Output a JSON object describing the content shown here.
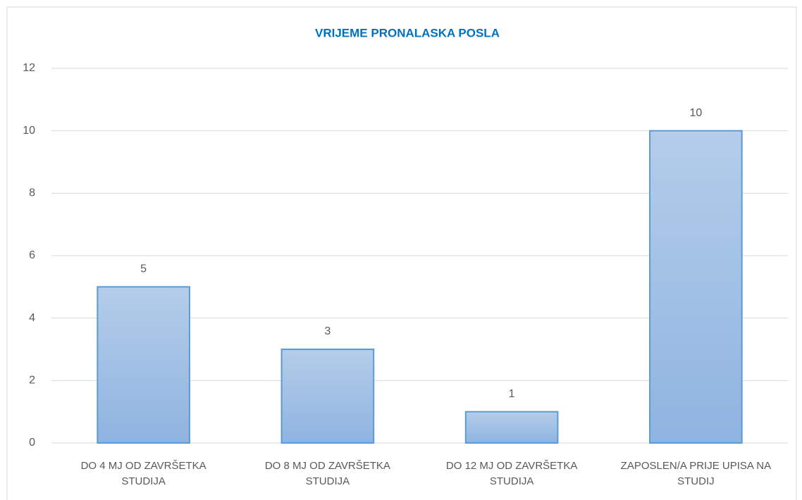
{
  "chart_data": {
    "type": "bar",
    "title": "VRIJEME PRONALASKA POSLA",
    "categories": [
      "DO 4 MJ OD ZAVRŠETKA STUDIJA",
      "DO 8 MJ OD ZAVRŠETKA STUDIJA",
      "DO 12 MJ OD ZAVRŠETKA STUDIJA",
      "ZAPOSLEN/A PRIJE UPISA NA STUDIJ"
    ],
    "values": [
      5,
      3,
      1,
      10
    ],
    "color": "#9dbde6",
    "ylim": [
      0,
      12
    ],
    "yticks": [
      0,
      2,
      4,
      6,
      8,
      10,
      12
    ],
    "grid": true
  }
}
